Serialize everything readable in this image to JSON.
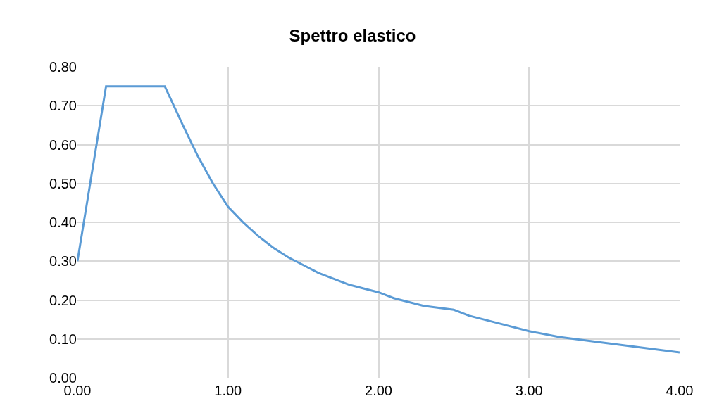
{
  "chart_data": {
    "type": "line",
    "title": "Spettro elastico",
    "x": [
      0,
      0.19,
      0.58,
      0.7,
      0.8,
      0.9,
      1.0,
      1.1,
      1.2,
      1.3,
      1.4,
      1.5,
      1.6,
      1.7,
      1.8,
      1.9,
      2.0,
      2.1,
      2.2,
      2.3,
      2.4,
      2.5,
      2.6,
      2.8,
      3.0,
      3.2,
      3.4,
      3.6,
      3.8,
      4.0
    ],
    "series": [
      {
        "color": "#5b9bd5",
        "values": [
          0.3,
          0.75,
          0.75,
          0.65,
          0.57,
          0.5,
          0.44,
          0.4,
          0.365,
          0.335,
          0.31,
          0.29,
          0.27,
          0.255,
          0.24,
          0.23,
          0.22,
          0.205,
          0.195,
          0.185,
          0.18,
          0.175,
          0.16,
          0.14,
          0.12,
          0.105,
          0.095,
          0.085,
          0.075,
          0.065
        ]
      }
    ],
    "xlim": [
      0,
      4
    ],
    "xticks": [
      {
        "value": 0,
        "label": "0.00"
      },
      {
        "value": 1,
        "label": "1.00"
      },
      {
        "value": 2,
        "label": "2.00"
      },
      {
        "value": 3,
        "label": "3.00"
      },
      {
        "value": 4,
        "label": "4.00"
      }
    ],
    "ylim": [
      0,
      0.8
    ],
    "yticks": [
      {
        "value": 0,
        "label": "0.00"
      },
      {
        "value": 0.1,
        "label": "0.10"
      },
      {
        "value": 0.2,
        "label": "0.20"
      },
      {
        "value": 0.3,
        "label": "0.30"
      },
      {
        "value": 0.4,
        "label": "0.40"
      },
      {
        "value": 0.5,
        "label": "0.50"
      },
      {
        "value": 0.6,
        "label": "0.60"
      },
      {
        "value": 0.7,
        "label": "0.70"
      },
      {
        "value": 0.8,
        "label": "0.80"
      }
    ],
    "grid": true,
    "legend": false,
    "marker": "none",
    "line_style": "solid"
  }
}
